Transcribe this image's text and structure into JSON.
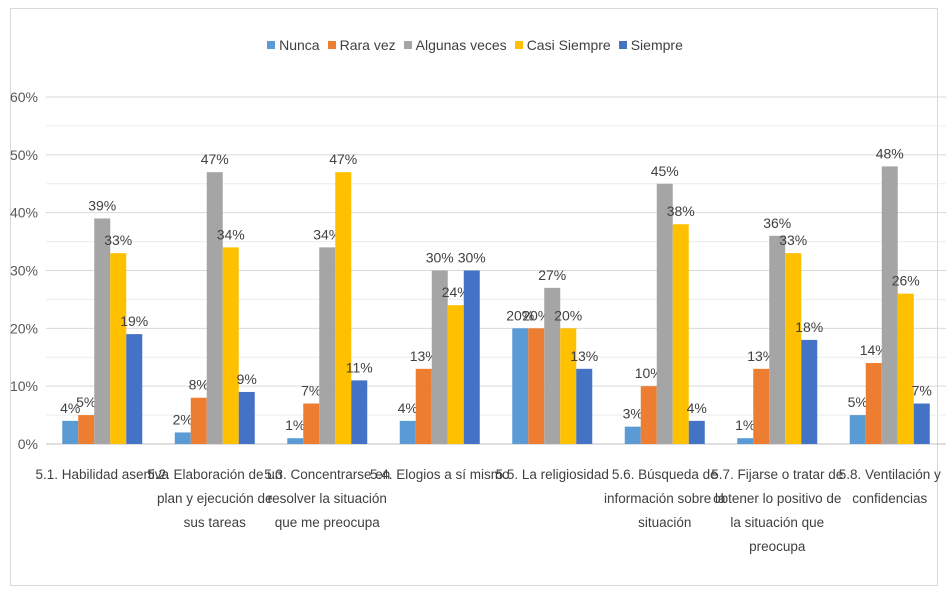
{
  "chart_data": {
    "type": "bar",
    "title": "",
    "xlabel": "",
    "ylabel": "",
    "ylim": [
      0,
      60
    ],
    "ytick_labels": [
      "0%",
      "10%",
      "20%",
      "30%",
      "40%",
      "50%",
      "60%"
    ],
    "grid": true,
    "legend_position": "top",
    "categories": [
      [
        "5.1. Habilidad asertiva"
      ],
      [
        "5.2. Elaboración de un",
        "plan y ejecución de",
        "sus tareas"
      ],
      [
        "5.3. Concentrarse en",
        "resolver la situación",
        "que me preocupa"
      ],
      [
        "5.4. Elogios a sí mismo"
      ],
      [
        "5.5. La religiosidad"
      ],
      [
        "5.6. Búsqueda de",
        "información sobre la",
        "situación"
      ],
      [
        "5.7. Fijarse o tratar de",
        "obtener lo positivo de",
        "la situación que",
        "preocupa"
      ],
      [
        "5.8. Ventilación y",
        "confidencias"
      ]
    ],
    "series": [
      {
        "name": "Nunca",
        "color": "#5b9bd5",
        "values": [
          4,
          2,
          1,
          4,
          20,
          3,
          1,
          5
        ]
      },
      {
        "name": "Rara vez",
        "color": "#ed7d31",
        "values": [
          5,
          8,
          7,
          13,
          20,
          10,
          13,
          14
        ]
      },
      {
        "name": "Algunas veces",
        "color": "#a5a5a5",
        "values": [
          39,
          47,
          34,
          30,
          27,
          45,
          36,
          48
        ]
      },
      {
        "name": "Casi Siempre",
        "color": "#ffc000",
        "values": [
          33,
          34,
          47,
          24,
          20,
          38,
          33,
          26
        ]
      },
      {
        "name": "Siempre",
        "color": "#4472c4",
        "values": [
          19,
          9,
          11,
          30,
          13,
          4,
          18,
          7
        ]
      }
    ]
  }
}
